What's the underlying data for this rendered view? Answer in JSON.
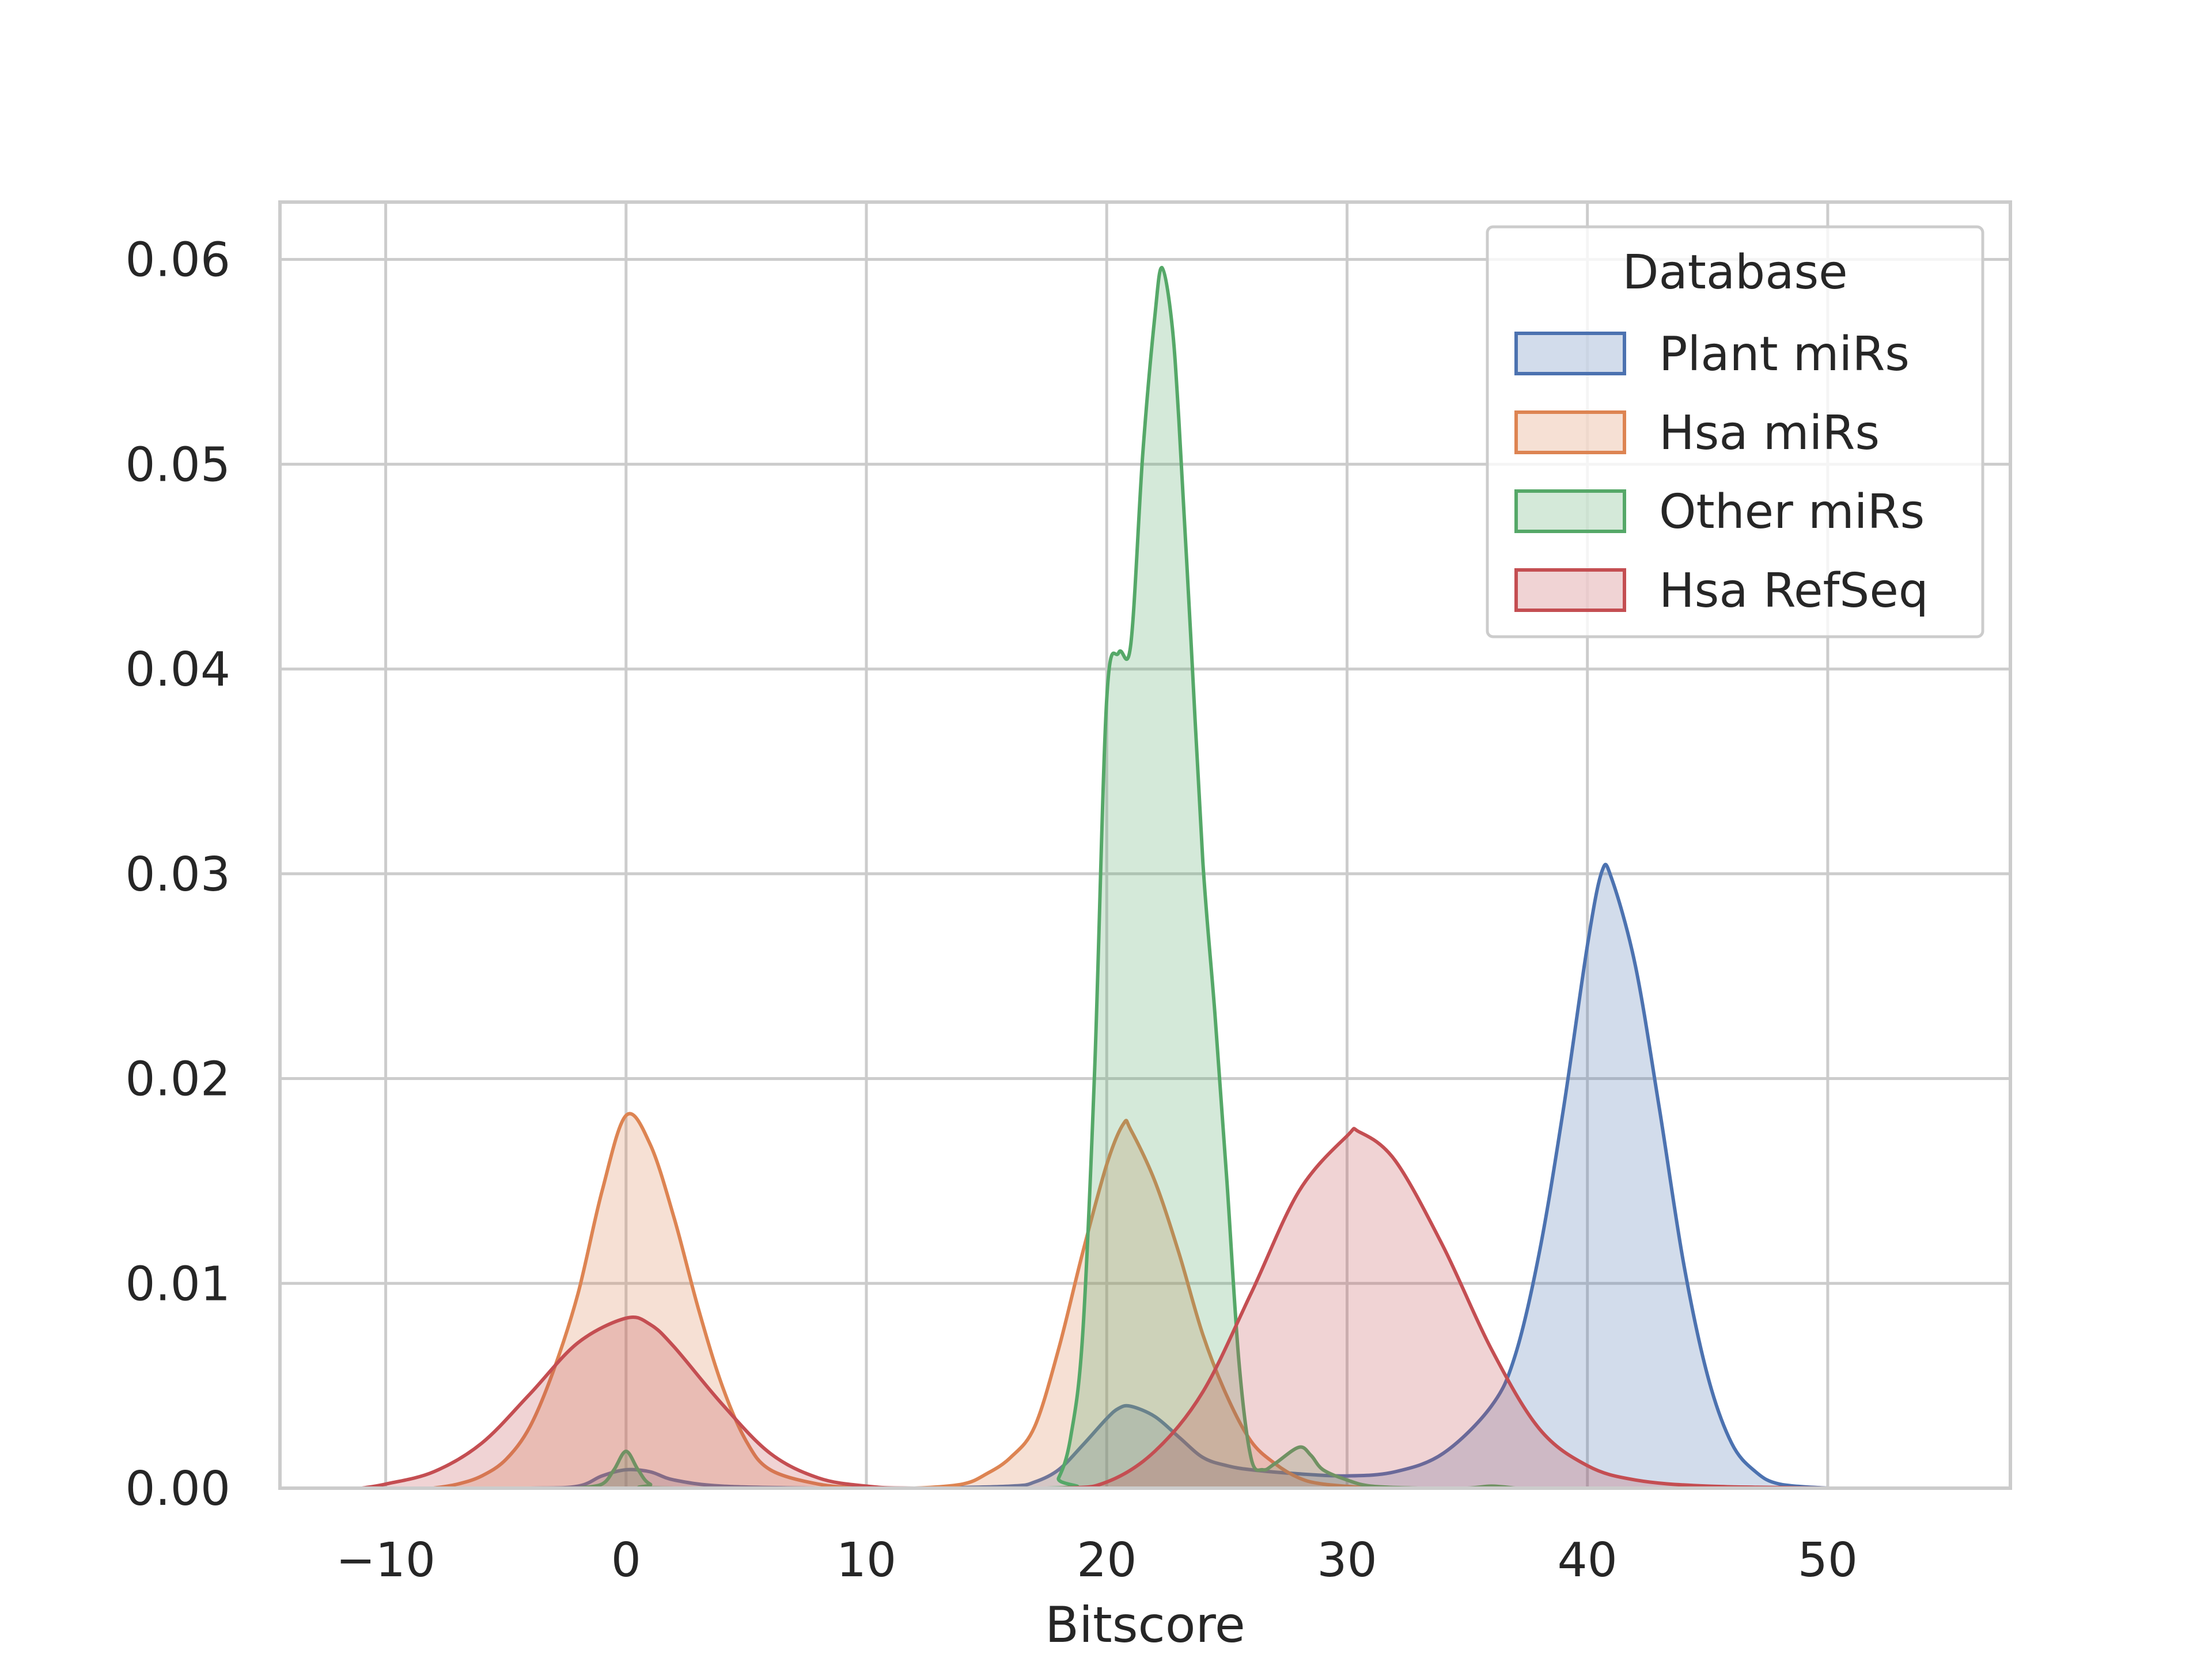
{
  "chart_data": {
    "type": "area",
    "title": "",
    "xlabel": "Bitscore",
    "ylabel": "",
    "xlim": [
      -14.4,
      57.6
    ],
    "ylim": [
      0,
      0.0628
    ],
    "xticks": [
      -10,
      0,
      10,
      20,
      30,
      40,
      50
    ],
    "xtick_labels": [
      "−10",
      "0",
      "10",
      "20",
      "30",
      "40",
      "50"
    ],
    "yticks": [
      0,
      0.01,
      0.02,
      0.03,
      0.04,
      0.05,
      0.06
    ],
    "ytick_labels": [
      "0.00",
      "0.01",
      "0.02",
      "0.03",
      "0.04",
      "0.05",
      "0.06"
    ],
    "grid": true,
    "legend": {
      "title": "Database",
      "placement": "top-right"
    },
    "series": [
      {
        "name": "Plant miRs",
        "color": "#4c72b0",
        "points": [
          [
            -10,
            0
          ],
          [
            -4,
            0
          ],
          [
            -2,
            0.0001
          ],
          [
            -1,
            0.0006
          ],
          [
            0,
            0.0009
          ],
          [
            1,
            0.0008
          ],
          [
            2,
            0.0004
          ],
          [
            4,
            0.0001
          ],
          [
            8,
            0
          ],
          [
            12,
            0
          ],
          [
            16,
            0.0001
          ],
          [
            17,
            0.0003
          ],
          [
            18,
            0.0009
          ],
          [
            19,
            0.0021
          ],
          [
            20,
            0.0034
          ],
          [
            20.5,
            0.0039
          ],
          [
            21,
            0.004
          ],
          [
            22,
            0.0035
          ],
          [
            23,
            0.0025
          ],
          [
            24,
            0.0015
          ],
          [
            25,
            0.0011
          ],
          [
            26,
            0.0009
          ],
          [
            28,
            0.0007
          ],
          [
            30,
            0.0006
          ],
          [
            32,
            0.0008
          ],
          [
            34,
            0.0017
          ],
          [
            36,
            0.004
          ],
          [
            37,
            0.0065
          ],
          [
            38,
            0.0115
          ],
          [
            39,
            0.0185
          ],
          [
            40,
            0.0265
          ],
          [
            40.6,
            0.0301
          ],
          [
            41,
            0.0298
          ],
          [
            42,
            0.0255
          ],
          [
            43,
            0.0185
          ],
          [
            44,
            0.011
          ],
          [
            45,
            0.0055
          ],
          [
            46,
            0.0022
          ],
          [
            47,
            0.0008
          ],
          [
            48,
            0.0002
          ],
          [
            50,
            0
          ]
        ]
      },
      {
        "name": "Hsa miRs",
        "color": "#dd8452",
        "points": [
          [
            -8,
            0
          ],
          [
            -7,
            0.0002
          ],
          [
            -6,
            0.0006
          ],
          [
            -5,
            0.0014
          ],
          [
            -4,
            0.003
          ],
          [
            -3,
            0.0058
          ],
          [
            -2,
            0.0095
          ],
          [
            -1,
            0.0145
          ],
          [
            0,
            0.0182
          ],
          [
            1,
            0.0168
          ],
          [
            2,
            0.0132
          ],
          [
            3,
            0.0088
          ],
          [
            4,
            0.005
          ],
          [
            5,
            0.0023
          ],
          [
            6,
            0.0009
          ],
          [
            8,
            0.0002
          ],
          [
            10,
            0
          ],
          [
            12,
            0
          ],
          [
            14,
            0.0002
          ],
          [
            15,
            0.0007
          ],
          [
            16,
            0.0015
          ],
          [
            17,
            0.003
          ],
          [
            18,
            0.0068
          ],
          [
            19,
            0.0115
          ],
          [
            20,
            0.0158
          ],
          [
            20.7,
            0.0178
          ],
          [
            21,
            0.0175
          ],
          [
            22,
            0.015
          ],
          [
            23,
            0.0115
          ],
          [
            24,
            0.0075
          ],
          [
            25,
            0.0045
          ],
          [
            26,
            0.0023
          ],
          [
            27,
            0.0012
          ],
          [
            28,
            0.0005
          ],
          [
            29,
            0.0002
          ],
          [
            31,
            0
          ]
        ]
      },
      {
        "name": "Other miRs",
        "color": "#55a868",
        "points": [
          [
            -2,
            0
          ],
          [
            -1,
            0.0002
          ],
          [
            -0.5,
            0.0009
          ],
          [
            0,
            0.0018
          ],
          [
            0.5,
            0.0009
          ],
          [
            1,
            0.0002
          ],
          [
            2,
            0
          ],
          [
            17.5,
            0
          ],
          [
            18,
            0.0005
          ],
          [
            18.5,
            0.0025
          ],
          [
            19,
            0.0075
          ],
          [
            19.5,
            0.0205
          ],
          [
            20,
            0.0385
          ],
          [
            20.5,
            0.0408
          ],
          [
            21,
            0.0412
          ],
          [
            21.5,
            0.0505
          ],
          [
            22,
            0.0572
          ],
          [
            22.3,
            0.0596
          ],
          [
            22.7,
            0.057
          ],
          [
            23,
            0.0522
          ],
          [
            23.5,
            0.0415
          ],
          [
            24,
            0.0306
          ],
          [
            24.5,
            0.0232
          ],
          [
            25,
            0.015
          ],
          [
            25.5,
            0.0062
          ],
          [
            26,
            0.0015
          ],
          [
            26.5,
            0.0009
          ],
          [
            27,
            0.0012
          ],
          [
            28,
            0.002
          ],
          [
            28.5,
            0.0016
          ],
          [
            29,
            0.0009
          ],
          [
            30,
            0.0004
          ],
          [
            31,
            0.0001
          ],
          [
            33,
            0
          ],
          [
            35,
            0
          ],
          [
            36,
            0.0001
          ],
          [
            37,
            0
          ]
        ]
      },
      {
        "name": "Hsa RefSeq",
        "color": "#c44e52",
        "points": [
          [
            -11,
            0
          ],
          [
            -10,
            0.0002
          ],
          [
            -8,
            0.0008
          ],
          [
            -6,
            0.0022
          ],
          [
            -4,
            0.0046
          ],
          [
            -2,
            0.0071
          ],
          [
            0,
            0.0083
          ],
          [
            1,
            0.008
          ],
          [
            2,
            0.0069
          ],
          [
            4,
            0.0041
          ],
          [
            6,
            0.0017
          ],
          [
            8,
            0.0005
          ],
          [
            10,
            0.0001
          ],
          [
            12,
            0
          ],
          [
            18,
            0
          ],
          [
            20,
            0.0003
          ],
          [
            22,
            0.0018
          ],
          [
            24,
            0.0047
          ],
          [
            26,
            0.0095
          ],
          [
            28,
            0.0145
          ],
          [
            30,
            0.0172
          ],
          [
            30.5,
            0.0174
          ],
          [
            32,
            0.016
          ],
          [
            34,
            0.0118
          ],
          [
            36,
            0.0068
          ],
          [
            38,
            0.0029
          ],
          [
            40,
            0.0011
          ],
          [
            42,
            0.0004
          ],
          [
            45,
            0.0001
          ],
          [
            50,
            0
          ]
        ]
      }
    ]
  }
}
